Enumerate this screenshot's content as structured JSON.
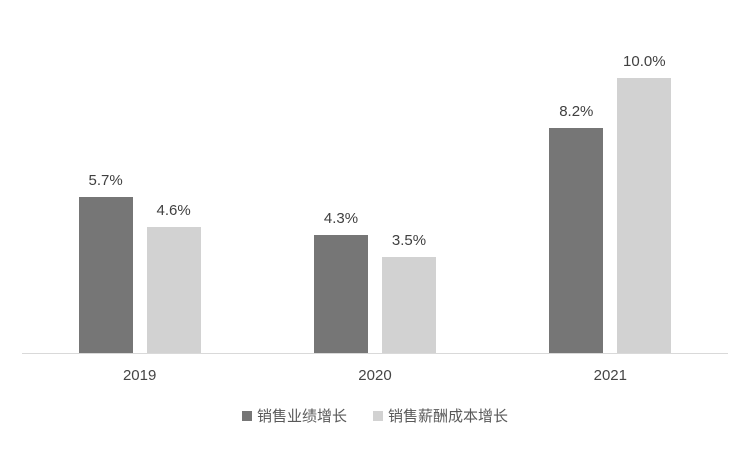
{
  "chart_data": {
    "type": "bar",
    "title": "",
    "xlabel": "",
    "ylabel": "",
    "categories": [
      "2019",
      "2020",
      "2021"
    ],
    "series": [
      {
        "name": "销售业绩增长",
        "color": "#767676",
        "values": [
          5.7,
          4.3,
          8.2
        ],
        "labels": [
          "5.7%",
          "4.3%",
          "8.2%"
        ]
      },
      {
        "name": "销售薪酬成本增长",
        "color": "#D2D2D2",
        "values": [
          4.6,
          3.5,
          10.0
        ],
        "labels": [
          "4.6%",
          "3.5%",
          "10.0%"
        ]
      }
    ],
    "ylim": [
      0,
      11.4
    ],
    "grid": false,
    "legend_position": "bottom",
    "axis_line_color": "#D9D9D9",
    "data_label_color": "#404040",
    "axis_label_color": "#454545",
    "legend_text_color": "#595959",
    "background_color": "#ffffff"
  }
}
